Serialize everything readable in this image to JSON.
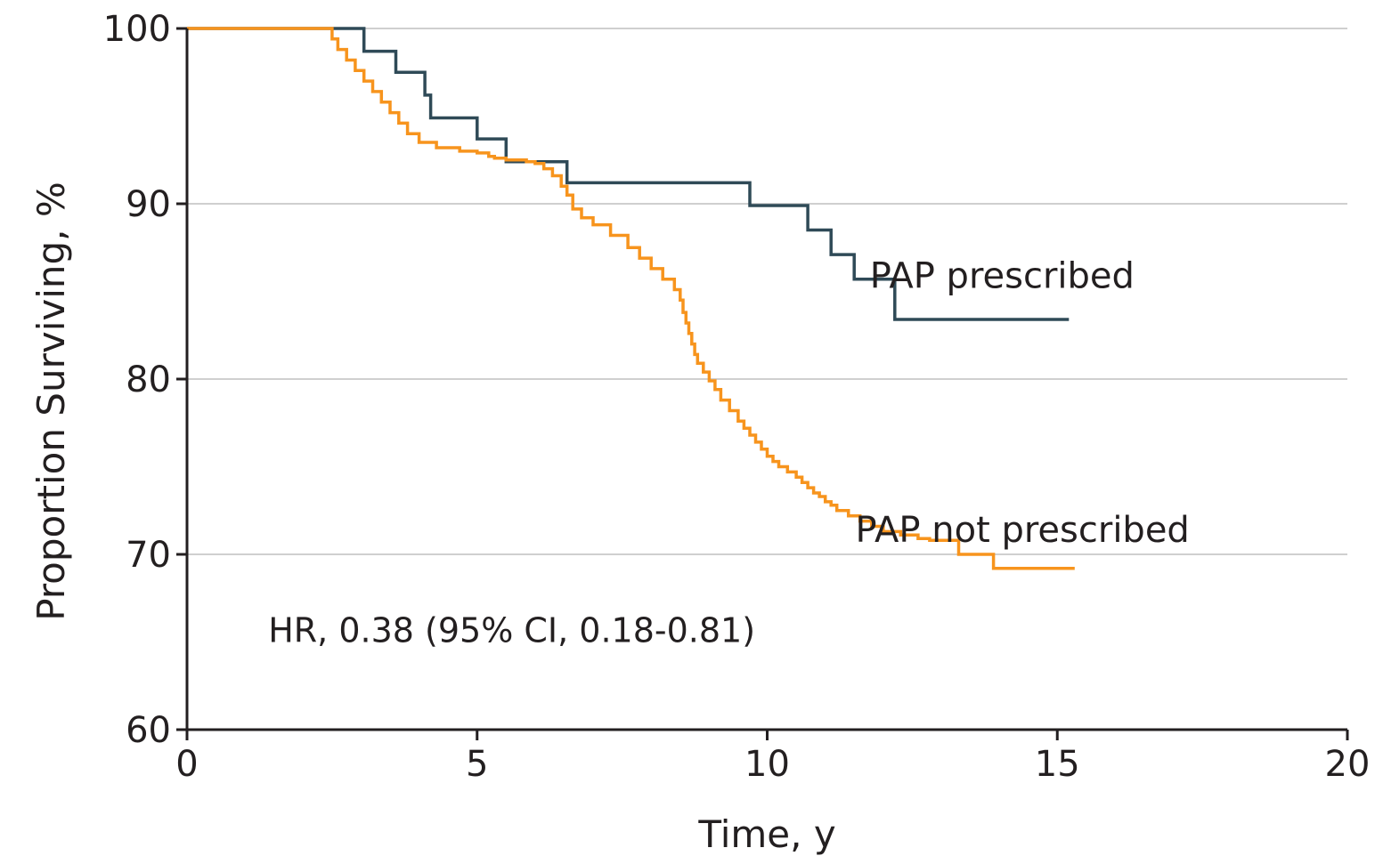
{
  "chart_data": {
    "type": "line",
    "title": "",
    "xlabel": "Time, y",
    "ylabel": "Proportion Surviving, %",
    "xlim": [
      0,
      20
    ],
    "ylim": [
      60,
      100
    ],
    "x_ticks": [
      "0",
      "5",
      "10",
      "15",
      "20"
    ],
    "y_ticks": [
      "60",
      "70",
      "80",
      "90",
      "100"
    ],
    "grid": true,
    "annotation": "HR, 0.38 (95% CI, 0.18-0.81)",
    "series": [
      {
        "name": "PAP prescribed",
        "color": "#2f4a57",
        "step": true,
        "x": [
          0,
          3.05,
          3.6,
          4.1,
          4.2,
          5.0,
          5.5,
          6.55,
          9.7,
          10.7,
          11.1,
          11.5,
          12.2,
          15.2
        ],
        "y": [
          100,
          98.7,
          97.5,
          96.2,
          94.9,
          93.7,
          92.4,
          91.2,
          89.9,
          88.5,
          87.1,
          85.7,
          83.4,
          83.4
        ]
      },
      {
        "name": "PAP not prescribed",
        "color": "#f7941d",
        "step": true,
        "x": [
          0,
          2.5,
          2.6,
          2.75,
          2.9,
          3.05,
          3.2,
          3.35,
          3.5,
          3.65,
          3.8,
          4.0,
          4.1,
          4.2,
          4.3,
          4.4,
          4.5,
          4.6,
          4.7,
          4.8,
          4.9,
          5.0,
          5.1,
          5.2,
          5.3,
          5.4,
          5.5,
          5.6,
          5.7,
          5.85,
          6.0,
          6.15,
          6.3,
          6.45,
          6.55,
          6.65,
          6.8,
          7.0,
          7.3,
          7.6,
          7.8,
          8.0,
          8.2,
          8.4,
          8.5,
          8.55,
          8.6,
          8.65,
          8.7,
          8.75,
          8.8,
          8.9,
          9.0,
          9.1,
          9.2,
          9.35,
          9.5,
          9.6,
          9.7,
          9.8,
          9.9,
          10.0,
          10.1,
          10.2,
          10.35,
          10.5,
          10.6,
          10.7,
          10.8,
          10.9,
          11.0,
          11.1,
          11.2,
          11.4,
          11.6,
          11.8,
          12.0,
          12.3,
          12.6,
          12.8,
          13.3,
          13.55,
          13.9,
          15.3
        ],
        "y": [
          100,
          99.4,
          98.8,
          98.2,
          97.6,
          97.0,
          96.4,
          95.8,
          95.2,
          94.6,
          94.0,
          93.5,
          93.5,
          93.5,
          93.2,
          93.2,
          93.2,
          93.2,
          93.0,
          93.0,
          93.0,
          92.9,
          92.9,
          92.7,
          92.6,
          92.6,
          92.5,
          92.5,
          92.5,
          92.4,
          92.3,
          92.0,
          91.6,
          91.0,
          90.5,
          89.7,
          89.2,
          88.8,
          88.2,
          87.5,
          86.9,
          86.3,
          85.7,
          85.1,
          84.5,
          83.8,
          83.2,
          82.6,
          82.0,
          81.4,
          80.9,
          80.4,
          79.9,
          79.4,
          78.8,
          78.2,
          77.6,
          77.2,
          76.8,
          76.4,
          76.0,
          75.6,
          75.3,
          75.0,
          74.7,
          74.4,
          74.1,
          73.8,
          73.5,
          73.3,
          73.0,
          72.8,
          72.5,
          72.2,
          71.9,
          71.6,
          71.3,
          71.1,
          70.9,
          70.8,
          70.0,
          70.0,
          69.2,
          69.2
        ]
      }
    ],
    "series_labels": [
      {
        "text": "PAP prescribed",
        "x": 14.05,
        "y": 85.2
      },
      {
        "text": "PAP not prescribed",
        "x": 14.4,
        "y": 70.7
      }
    ],
    "annotation_anchor": {
      "x": 1.4,
      "y": 65.0
    }
  }
}
